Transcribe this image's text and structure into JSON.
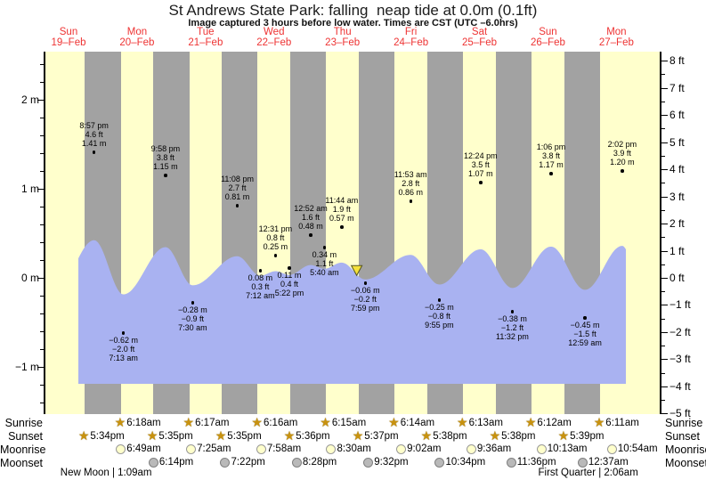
{
  "title": "St Andrews State Park: falling  neap tide at 0.0m (0.1ft)",
  "subtitle": "Image captured 3 hours before low water. Times are CST (UTC –6.0hrs)",
  "day_labels": [
    {
      "name": "Sun",
      "date": "19–Feb"
    },
    {
      "name": "Mon",
      "date": "20–Feb"
    },
    {
      "name": "Tue",
      "date": "21–Feb"
    },
    {
      "name": "Wed",
      "date": "22–Feb"
    },
    {
      "name": "Thu",
      "date": "23–Feb"
    },
    {
      "name": "Fri",
      "date": "24–Feb"
    },
    {
      "name": "Sat",
      "date": "25–Feb"
    },
    {
      "name": "Sun",
      "date": "26–Feb"
    },
    {
      "name": "Mon",
      "date": "27–Feb"
    }
  ],
  "y_axis_left": {
    "unit": "m",
    "labels": [
      {
        "text": "2 m",
        "m": 2
      },
      {
        "text": "1 m",
        "m": 1
      },
      {
        "text": "0 m",
        "m": 0
      },
      {
        "text": "−1 m",
        "m": -1
      }
    ]
  },
  "y_axis_right": {
    "unit": "ft",
    "labels": [
      {
        "text": "8 ft",
        "ft": 8
      },
      {
        "text": "7 ft",
        "ft": 7
      },
      {
        "text": "6 ft",
        "ft": 6
      },
      {
        "text": "5 ft",
        "ft": 5
      },
      {
        "text": "4 ft",
        "ft": 4
      },
      {
        "text": "3 ft",
        "ft": 3
      },
      {
        "text": "2 ft",
        "ft": 2
      },
      {
        "text": "1 ft",
        "ft": 1
      },
      {
        "text": "0 ft",
        "ft": 0
      },
      {
        "text": "−1 ft",
        "ft": -1
      },
      {
        "text": "−2 ft",
        "ft": -2
      },
      {
        "text": "−3 ft",
        "ft": -3
      },
      {
        "text": "−4 ft",
        "ft": -4
      },
      {
        "text": "−5 ft",
        "ft": -5
      }
    ]
  },
  "chart_data": {
    "type": "area",
    "title": "St Andrews State Park tide curve, Sun 19-Feb to Mon 27-Feb",
    "x_axis": {
      "start": "Sun 19–Feb",
      "end": "Mon 27–Feb",
      "num_days": 9
    },
    "y_range_m": [
      -1.55,
      2.55
    ],
    "tide_events": [
      {
        "day": 0,
        "type": "high",
        "time": "8:57 pm",
        "hour": 20.95,
        "height_m": 1.41,
        "height_ft": 4.6,
        "label_m": "1.41 m",
        "label_ft": "4.6 ft"
      },
      {
        "day": 1,
        "type": "low",
        "time": "7:13 am",
        "hour": 7.22,
        "height_m": -0.62,
        "height_ft": -2.0,
        "label_m": "−0.62 m",
        "label_ft": "−2.0 ft"
      },
      {
        "day": 1,
        "type": "high",
        "time": "9:58 pm",
        "hour": 21.97,
        "height_m": 1.15,
        "height_ft": 3.8,
        "label_m": "1.15 m",
        "label_ft": "3.8 ft"
      },
      {
        "day": 2,
        "type": "low",
        "time": "7:30 am",
        "hour": 7.5,
        "height_m": -0.28,
        "height_ft": -0.9,
        "label_m": "−0.28 m",
        "label_ft": "−0.9 ft"
      },
      {
        "day": 2,
        "type": "high",
        "time": "11:08 pm",
        "hour": 23.13,
        "height_m": 0.81,
        "height_ft": 2.7,
        "label_m": "0.81 m",
        "label_ft": "2.7 ft"
      },
      {
        "day": 3,
        "type": "low",
        "time": "7:12 am",
        "hour": 7.2,
        "height_m": 0.08,
        "height_ft": 0.3,
        "label_m": "0.08 m",
        "label_ft": "0.3 ft"
      },
      {
        "day": 3,
        "type": "high",
        "time": "12:31 pm",
        "hour": 12.52,
        "height_m": 0.25,
        "height_ft": 0.8,
        "label_m": "0.25 m",
        "label_ft": "0.8 ft"
      },
      {
        "day": 3,
        "type": "low",
        "time": "5:22 pm",
        "hour": 17.37,
        "height_m": 0.11,
        "height_ft": 0.4,
        "label_m": "0.11 m",
        "label_ft": "0.4 ft"
      },
      {
        "day": 4,
        "type": "high",
        "time": "12:52 am",
        "hour": 0.87,
        "height_m": 0.48,
        "height_ft": 1.6,
        "label_m": "0.48 m",
        "label_ft": "1.6 ft"
      },
      {
        "day": 4,
        "type": "low",
        "time": "5:40 am",
        "hour": 5.67,
        "height_m": 0.34,
        "height_ft": 1.1,
        "label_m": "0.34 m",
        "label_ft": "1.1 ft"
      },
      {
        "day": 4,
        "type": "high",
        "time": "11:44 am",
        "hour": 11.73,
        "height_m": 0.57,
        "height_ft": 1.9,
        "label_m": "0.57 m",
        "label_ft": "1.9 ft"
      },
      {
        "day": 4,
        "type": "low",
        "time": "7:59 pm",
        "hour": 19.98,
        "height_m": -0.06,
        "height_ft": -0.2,
        "label_m": "−0.06 m",
        "label_ft": "−0.2 ft"
      },
      {
        "day": 5,
        "type": "high",
        "time": "11:53 am",
        "hour": 11.88,
        "height_m": 0.86,
        "height_ft": 2.8,
        "label_m": "0.86 m",
        "label_ft": "2.8 ft"
      },
      {
        "day": 5,
        "type": "low",
        "time": "9:55 pm",
        "hour": 21.92,
        "height_m": -0.25,
        "height_ft": -0.8,
        "label_m": "−0.25 m",
        "label_ft": "−0.8 ft"
      },
      {
        "day": 6,
        "type": "high",
        "time": "12:24 pm",
        "hour": 12.4,
        "height_m": 1.07,
        "height_ft": 3.5,
        "label_m": "1.07 m",
        "label_ft": "3.5 ft"
      },
      {
        "day": 6,
        "type": "low",
        "time": "11:32 pm",
        "hour": 23.53,
        "height_m": -0.38,
        "height_ft": -1.2,
        "label_m": "−0.38 m",
        "label_ft": "−1.2 ft"
      },
      {
        "day": 7,
        "type": "high",
        "time": "1:06 pm",
        "hour": 13.1,
        "height_m": 1.17,
        "height_ft": 3.8,
        "label_m": "1.17 m",
        "label_ft": "3.8 ft"
      },
      {
        "day": 8,
        "type": "low",
        "time": "12:59 am",
        "hour": 0.98,
        "height_m": -0.45,
        "height_ft": -1.5,
        "label_m": "−0.45 m",
        "label_ft": "−1.5 ft"
      },
      {
        "day": 8,
        "type": "high",
        "time": "2:02 pm",
        "hour": 14.03,
        "height_m": 1.2,
        "height_ft": 3.9,
        "label_m": "1.20 m",
        "label_ft": "3.9 ft"
      }
    ],
    "current_time_marker": {
      "day": 4,
      "hour": 16.98,
      "height_m": 0.0,
      "note": "falling neap tide at 0.0m (0.1ft)"
    }
  },
  "almanac": {
    "rows": [
      {
        "id": "sunrise",
        "label": "Sunrise",
        "icon": "sun-star",
        "events": [
          {
            "day": 1,
            "time": "6:18am"
          },
          {
            "day": 2,
            "time": "6:17am"
          },
          {
            "day": 3,
            "time": "6:16am"
          },
          {
            "day": 4,
            "time": "6:15am"
          },
          {
            "day": 5,
            "time": "6:14am"
          },
          {
            "day": 6,
            "time": "6:13am"
          },
          {
            "day": 7,
            "time": "6:12am"
          },
          {
            "day": 8,
            "time": "6:11am"
          }
        ]
      },
      {
        "id": "sunset",
        "label": "Sunset",
        "icon": "sun-star",
        "events": [
          {
            "day": 0,
            "time": "5:34pm"
          },
          {
            "day": 1,
            "time": "5:35pm"
          },
          {
            "day": 2,
            "time": "5:35pm"
          },
          {
            "day": 3,
            "time": "5:36pm"
          },
          {
            "day": 4,
            "time": "5:37pm"
          },
          {
            "day": 5,
            "time": "5:38pm"
          },
          {
            "day": 6,
            "time": "5:38pm"
          },
          {
            "day": 7,
            "time": "5:39pm"
          }
        ]
      },
      {
        "id": "moonrise",
        "label": "Moonrise",
        "icon": "moon-light",
        "events": [
          {
            "day": 1,
            "time": "6:49am"
          },
          {
            "day": 2,
            "time": "7:25am"
          },
          {
            "day": 3,
            "time": "7:58am"
          },
          {
            "day": 4,
            "time": "8:30am"
          },
          {
            "day": 5,
            "time": "9:02am"
          },
          {
            "day": 6,
            "time": "9:36am"
          },
          {
            "day": 7,
            "time": "10:13am"
          },
          {
            "day": 8,
            "time": "10:54am"
          }
        ]
      },
      {
        "id": "moonset",
        "label": "Moonset",
        "icon": "moon-dark",
        "events": [
          {
            "day": 1,
            "time": "6:14pm"
          },
          {
            "day": 2,
            "time": "7:22pm"
          },
          {
            "day": 3,
            "time": "8:28pm"
          },
          {
            "day": 4,
            "time": "9:32pm"
          },
          {
            "day": 5,
            "time": "10:34pm"
          },
          {
            "day": 6,
            "time": "11:36pm"
          },
          {
            "day": 8,
            "time": "12:37am"
          }
        ]
      }
    ],
    "moon_phases": [
      {
        "name": "New Moon",
        "time": "1:09am",
        "day": 1,
        "hour": 1.15
      },
      {
        "name": "First Quarter",
        "time": "2:06am",
        "day": 8,
        "hour": 2.1
      }
    ]
  },
  "colors": {
    "day_band": "#ffffcc",
    "night_band": "#a2a2a2",
    "tide_fill": "#a9b2f1",
    "date_red": "#ee3333",
    "sun_gold": "#c8920f",
    "moon_light": "#ffffcc",
    "moon_dark": "#b9b9b9",
    "marker_yellow": "#f5e13a"
  }
}
